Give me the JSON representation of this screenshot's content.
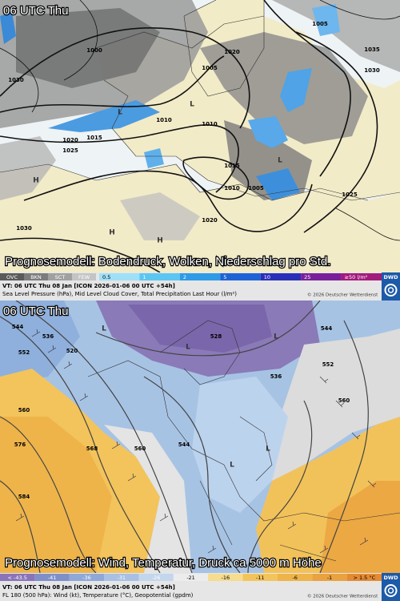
{
  "top_panel": {
    "time_label": "06 UTC Thu",
    "caption": "Prognosemodell: Bodendruck, Wolken, Niederschlag pro Std.",
    "cloud_legend": [
      "OVC",
      "BKN",
      "SCT",
      "FEW"
    ],
    "precip_legend": [
      "0.5",
      "1",
      "2",
      "5",
      "10",
      "25",
      "≥50 l/m²"
    ],
    "vt_line": "VT: 06 UTC Thu   08 Jan [ICON 2026-01-06 00 UTC +54h]",
    "description": "Sea Level Pressure (hPa), Mid Level Cloud Cover, Total Precipitation Last Hour (l/m²)",
    "copyright": "© 2026 Deutscher Wetterdienst",
    "logo": "DWD",
    "map_labels": [
      "1030",
      "1025",
      "1020",
      "1015",
      "1000",
      "1005",
      "1020",
      "1005",
      "1010",
      "1035",
      "1030",
      "1010",
      "1015",
      "1010",
      "1005",
      "1025",
      "1020",
      "1030",
      "L",
      "L",
      "L",
      "H",
      "H",
      "H"
    ]
  },
  "bottom_panel": {
    "time_label": "06 UTC Thu",
    "caption": "Prognosemodell: Wind, Temperatur, Druck ca 5000 m Höhe",
    "temp_legend": [
      "< -43.5",
      "-41",
      "-36",
      "-31",
      "-26",
      "-21",
      "-16",
      "-11",
      "-6",
      "-1",
      "> 1.5 °C"
    ],
    "vt_line": "VT: 06 UTC Thu   08 Jan [ICON 2026-01-06 00 UTC +54h]",
    "description": "FL 180 (500 hPa): Wind (kt), Temperature (°C), Geopotential (gpdm)",
    "copyright": "© 2026 Deutscher Wetterdienst",
    "logo": "DWD",
    "map_labels": [
      "544",
      "552",
      "536",
      "520",
      "560",
      "576",
      "568",
      "584",
      "560",
      "544",
      "536",
      "552",
      "560",
      "528",
      "544",
      "L",
      "L",
      "L",
      "L",
      "L"
    ]
  }
}
